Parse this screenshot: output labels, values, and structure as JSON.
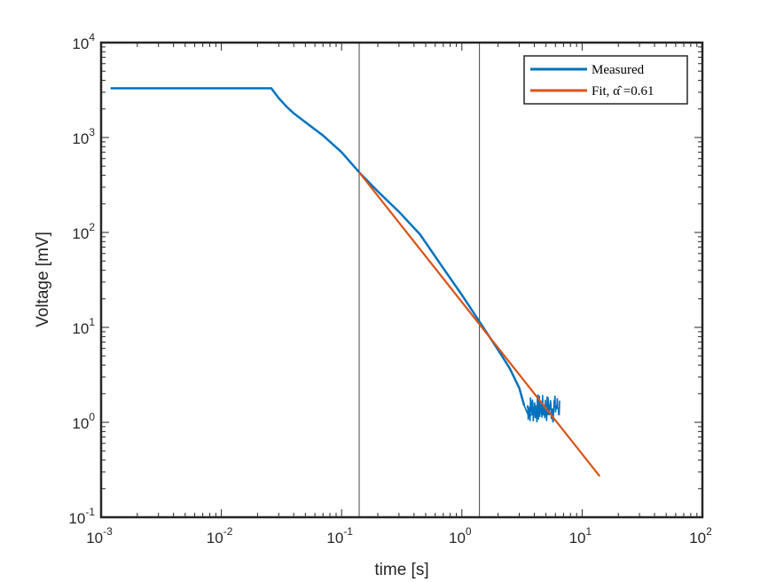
{
  "chart_data": {
    "type": "line",
    "xlabel": "time [s]",
    "ylabel": "Voltage [mV]",
    "x_scale": "log",
    "y_scale": "log",
    "xlim": [
      0.001,
      100
    ],
    "ylim": [
      0.1,
      10000
    ],
    "x_ticks": [
      {
        "base": "10",
        "exp": "-3"
      },
      {
        "base": "10",
        "exp": "-2"
      },
      {
        "base": "10",
        "exp": "-1"
      },
      {
        "base": "10",
        "exp": "0"
      },
      {
        "base": "10",
        "exp": "1"
      },
      {
        "base": "10",
        "exp": "2"
      }
    ],
    "y_ticks": [
      {
        "base": "10",
        "exp": "-1"
      },
      {
        "base": "10",
        "exp": "0"
      },
      {
        "base": "10",
        "exp": "1"
      },
      {
        "base": "10",
        "exp": "2"
      },
      {
        "base": "10",
        "exp": "3"
      },
      {
        "base": "10",
        "exp": "4"
      }
    ],
    "grid": false,
    "legend_position": "top-right",
    "vertical_lines": [
      0.14,
      1.4
    ],
    "series": [
      {
        "name": "Measured",
        "color": "#0072BD",
        "x": [
          0.0012,
          0.005,
          0.01,
          0.02,
          0.026,
          0.03,
          0.035,
          0.04,
          0.05,
          0.07,
          0.1,
          0.14,
          0.2,
          0.3,
          0.45,
          0.7,
          1.0,
          1.4,
          2.0,
          2.5,
          3.0,
          3.3,
          3.6,
          4.0,
          4.5,
          5.0,
          5.5,
          6.0,
          6.5
        ],
        "y": [
          3300,
          3300,
          3300,
          3300,
          3300,
          2600,
          2100,
          1800,
          1450,
          1050,
          700,
          430,
          270,
          165,
          95,
          42,
          22,
          11.5,
          5.8,
          3.7,
          2.3,
          1.5,
          1.15,
          1.25,
          1.3,
          1.35,
          1.4,
          1.45,
          1.5
        ]
      },
      {
        "name": "Fit, α̂ =0.61",
        "color": "#D95319",
        "x": [
          0.14,
          14
        ],
        "y": [
          430,
          0.27
        ]
      }
    ],
    "noise_region": {
      "x_start": 3.5,
      "x_end": 6.5,
      "y_low": 0.95,
      "y_high": 1.95
    }
  }
}
